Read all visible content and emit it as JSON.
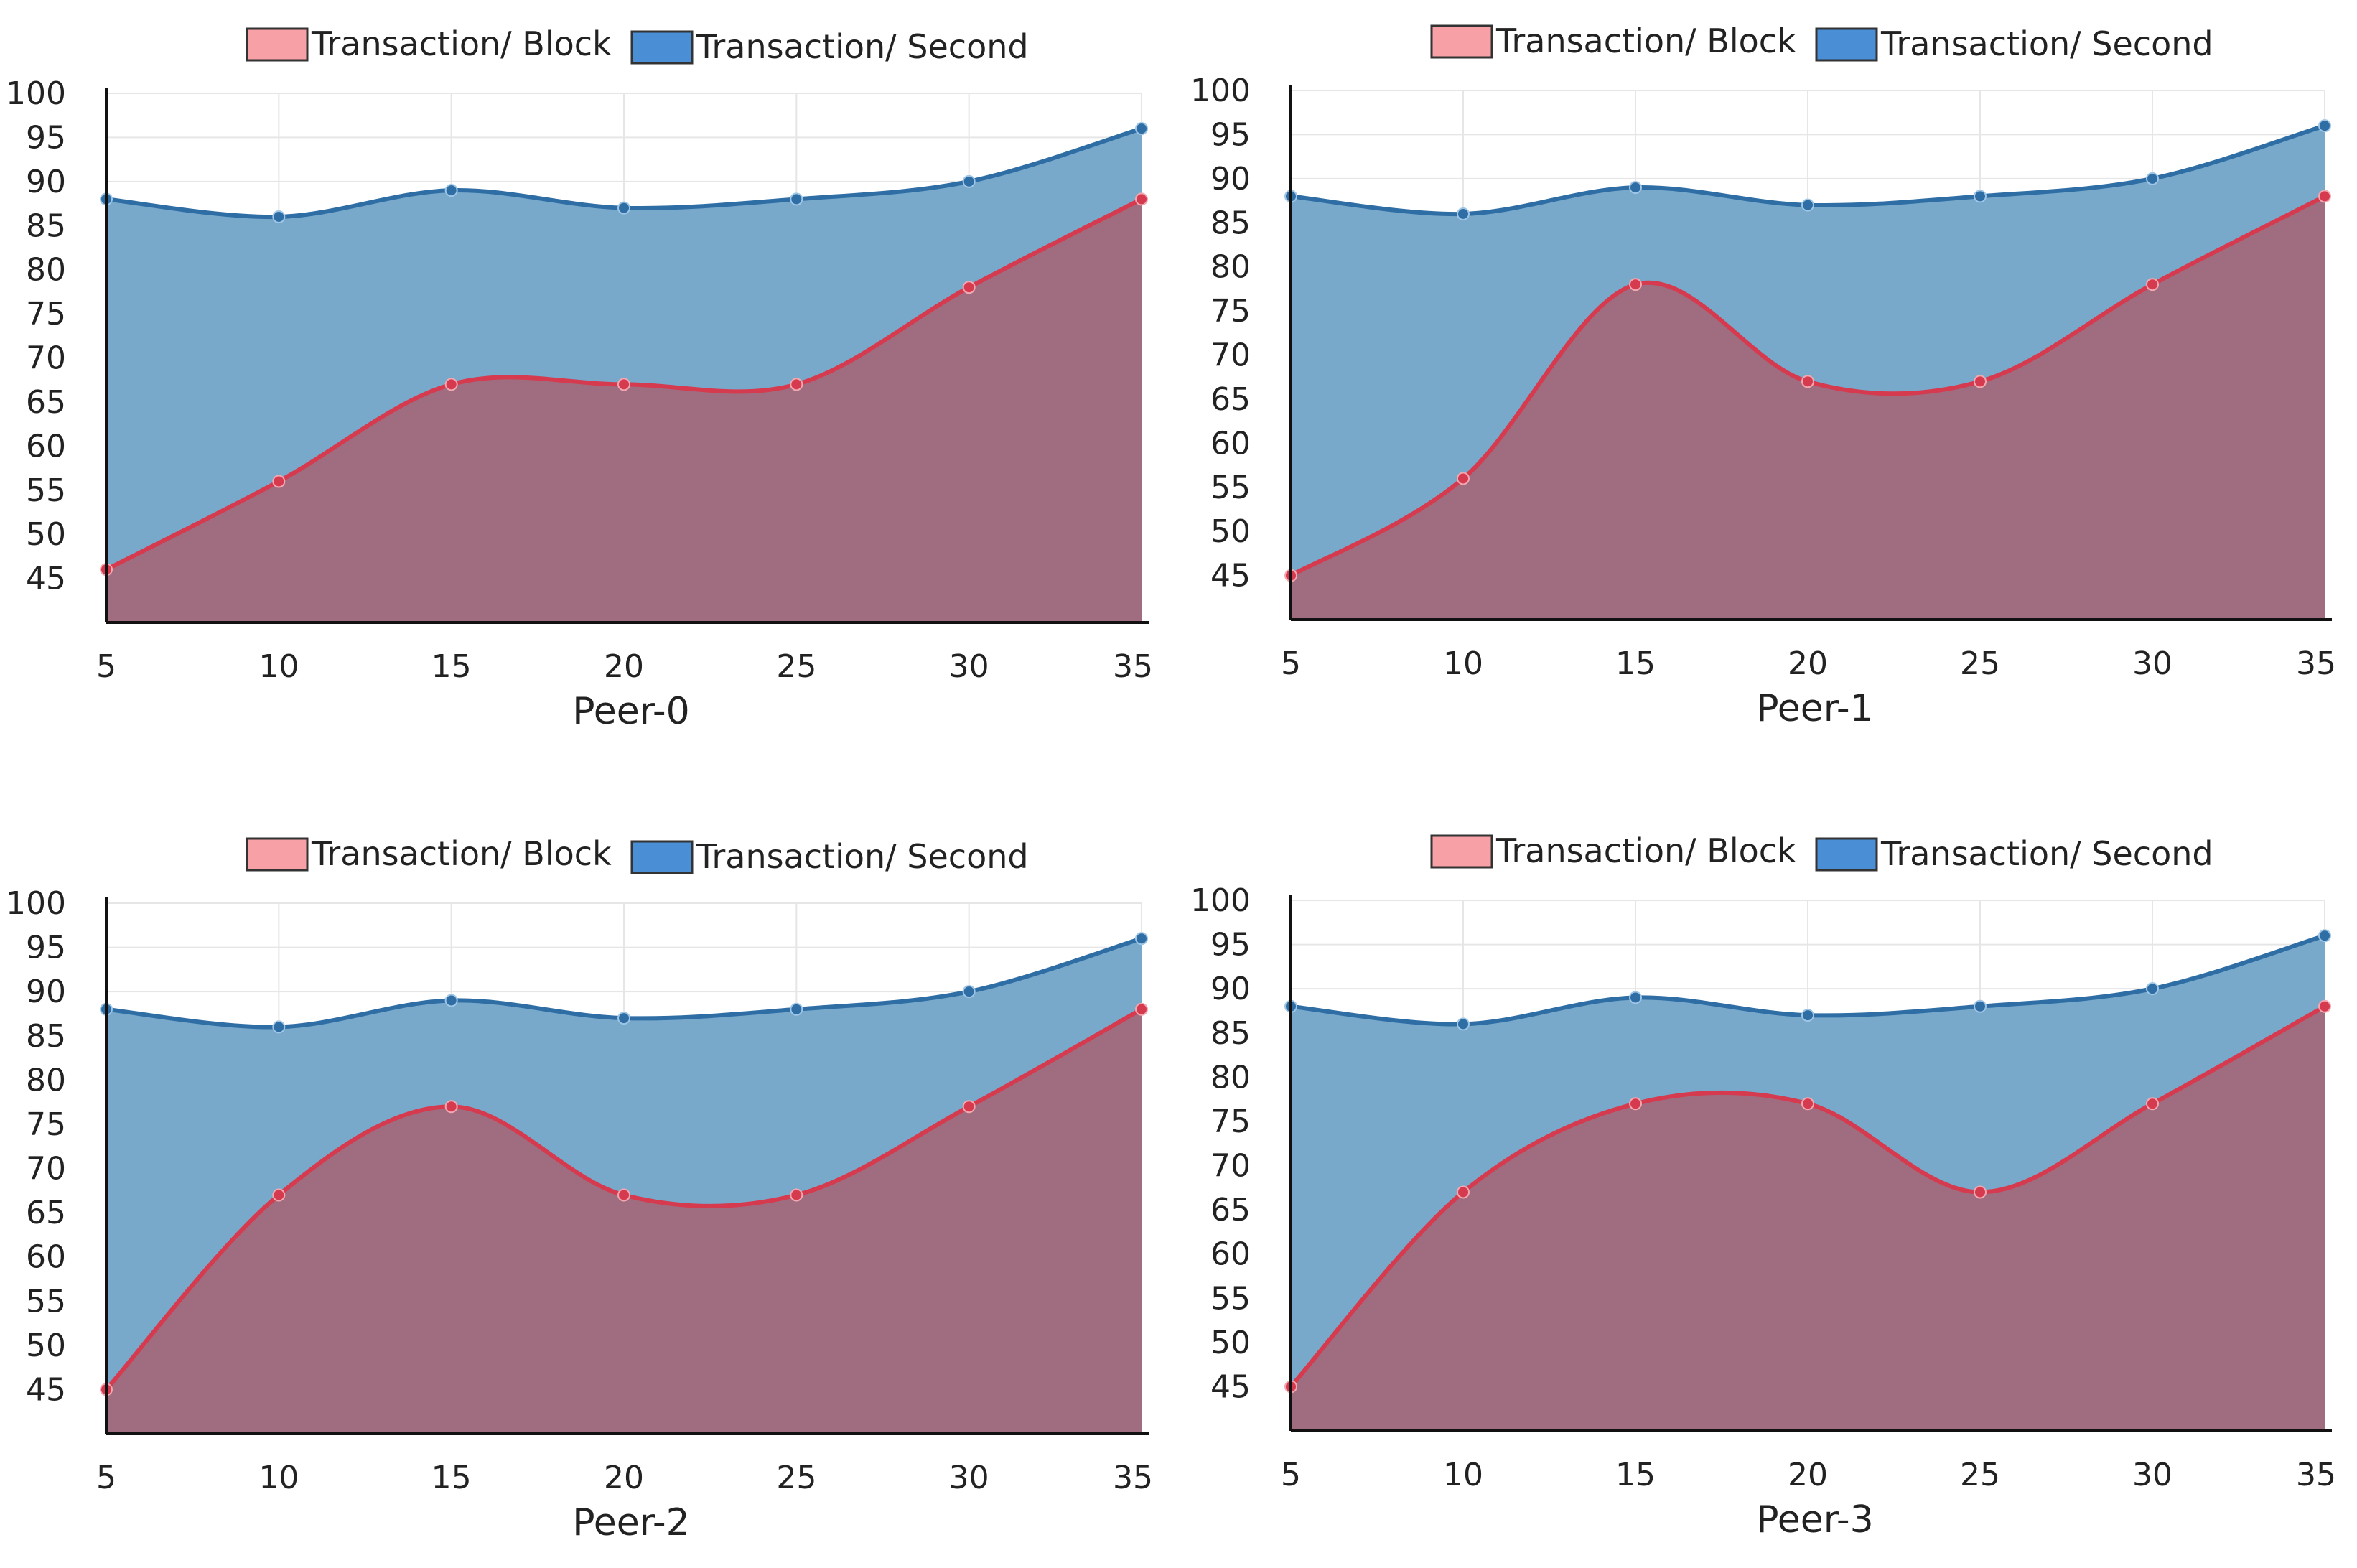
{
  "colors": {
    "block_line": "#d63a4e",
    "block_fill": "#a06c7f",
    "second_line": "#2f6ea5",
    "second_fill": "#78a9ca",
    "block_swatch": "#f7a1a6",
    "second_swatch": "#4a8ed6",
    "axis": "#111111",
    "grid": "#e6e6e6"
  },
  "chart_data": [
    {
      "type": "area",
      "xlabel": "Peer-0",
      "x": [
        5,
        10,
        15,
        20,
        25,
        30,
        35
      ],
      "ylim": [
        40,
        100
      ],
      "yticks": [
        45,
        50,
        55,
        60,
        65,
        70,
        75,
        80,
        85,
        90,
        95,
        100
      ],
      "legend": [
        "Transaction/ Block",
        "Transaction/ Second"
      ],
      "series": [
        {
          "name": "Transaction/ Block",
          "values": [
            46,
            56,
            67,
            67,
            67,
            78,
            88
          ]
        },
        {
          "name": "Transaction/ Second",
          "values": [
            88,
            86,
            89,
            87,
            88,
            90,
            96
          ]
        }
      ]
    },
    {
      "type": "area",
      "xlabel": "Peer-1",
      "x": [
        5,
        10,
        15,
        20,
        25,
        30,
        35
      ],
      "ylim": [
        40,
        100
      ],
      "yticks": [
        45,
        50,
        55,
        60,
        65,
        70,
        75,
        80,
        85,
        90,
        95,
        100
      ],
      "legend": [
        "Transaction/ Block",
        "Transaction/ Second"
      ],
      "series": [
        {
          "name": "Transaction/ Block",
          "values": [
            45,
            56,
            78,
            67,
            67,
            78,
            88
          ]
        },
        {
          "name": "Transaction/ Second",
          "values": [
            88,
            86,
            89,
            87,
            88,
            90,
            96
          ]
        }
      ]
    },
    {
      "type": "area",
      "xlabel": "Peer-2",
      "x": [
        5,
        10,
        15,
        20,
        25,
        30,
        35
      ],
      "ylim": [
        40,
        100
      ],
      "yticks": [
        45,
        50,
        55,
        60,
        65,
        70,
        75,
        80,
        85,
        90,
        95,
        100
      ],
      "legend": [
        "Transaction/ Block",
        "Transaction/ Second"
      ],
      "series": [
        {
          "name": "Transaction/ Block",
          "values": [
            45,
            67,
            77,
            67,
            67,
            77,
            88
          ]
        },
        {
          "name": "Transaction/ Second",
          "values": [
            88,
            86,
            89,
            87,
            88,
            90,
            96
          ]
        }
      ]
    },
    {
      "type": "area",
      "xlabel": "Peer-3",
      "x": [
        5,
        10,
        15,
        20,
        25,
        30,
        35
      ],
      "ylim": [
        40,
        100
      ],
      "yticks": [
        45,
        50,
        55,
        60,
        65,
        70,
        75,
        80,
        85,
        90,
        95,
        100
      ],
      "legend": [
        "Transaction/ Block",
        "Transaction/ Second"
      ],
      "series": [
        {
          "name": "Transaction/ Block",
          "values": [
            45,
            67,
            77,
            77,
            67,
            77,
            88
          ]
        },
        {
          "name": "Transaction/ Second",
          "values": [
            88,
            86,
            89,
            87,
            88,
            90,
            96
          ]
        }
      ]
    }
  ]
}
